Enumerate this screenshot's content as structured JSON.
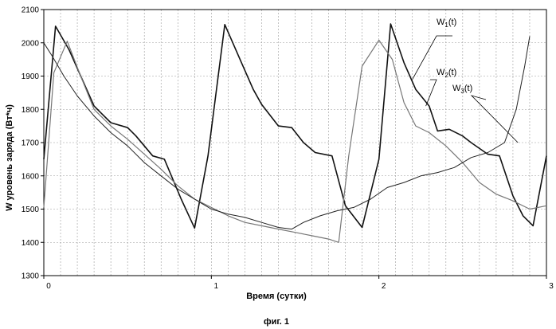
{
  "chart_data": {
    "type": "line",
    "xlabel": "Время (сутки)",
    "ylabel": "W уровень заряда (Вт*ч)",
    "caption": "фиг. 1",
    "xlim": [
      0,
      3
    ],
    "ylim": [
      1300,
      2100
    ],
    "xticks": [
      0,
      1,
      2,
      3
    ],
    "yticks": [
      1300,
      1400,
      1500,
      1600,
      1700,
      1800,
      1900,
      2000,
      2100
    ],
    "grid": true,
    "series": [
      {
        "name": "W1(t)",
        "label_main": "W",
        "label_sub": "1",
        "label_suffix": "(t)",
        "color": "#111111",
        "stroke_width": 1.6,
        "x": [
          0,
          0.07,
          0.15,
          0.3,
          0.4,
          0.5,
          0.55,
          0.65,
          0.72,
          0.82,
          0.9,
          0.98,
          1.08,
          1.18,
          1.25,
          1.3,
          1.4,
          1.48,
          1.55,
          1.62,
          1.72,
          1.8,
          1.9,
          2.0,
          2.07,
          2.15,
          2.22,
          2.3,
          2.35,
          2.42,
          2.5,
          2.55,
          2.65,
          2.72,
          2.8,
          2.86,
          2.92,
          3.0
        ],
        "y": [
          1650,
          2050,
          1980,
          1810,
          1760,
          1745,
          1720,
          1660,
          1650,
          1530,
          1443,
          1660,
          2055,
          1940,
          1860,
          1815,
          1750,
          1745,
          1700,
          1670,
          1660,
          1510,
          1445,
          1650,
          2057,
          1940,
          1860,
          1810,
          1735,
          1740,
          1720,
          1700,
          1665,
          1660,
          1540,
          1480,
          1450,
          1660
        ]
      },
      {
        "name": "W2(t)",
        "label_main": "W",
        "label_sub": "2",
        "label_suffix": "(t)",
        "color": "#777777",
        "stroke_width": 1.2,
        "x": [
          0,
          0.06,
          0.14,
          0.22,
          0.3,
          0.4,
          0.5,
          0.6,
          0.7,
          0.8,
          0.9,
          1.0,
          1.1,
          1.2,
          1.3,
          1.4,
          1.5,
          1.6,
          1.7,
          1.76,
          1.82,
          1.9,
          2.0,
          2.08,
          2.15,
          2.22,
          2.3,
          2.4,
          2.5,
          2.6,
          2.7,
          2.8,
          2.9,
          3.0
        ],
        "y": [
          1505,
          1910,
          2005,
          1900,
          1800,
          1750,
          1710,
          1665,
          1620,
          1570,
          1530,
          1505,
          1480,
          1460,
          1450,
          1440,
          1430,
          1420,
          1410,
          1400,
          1660,
          1930,
          2008,
          1950,
          1820,
          1750,
          1730,
          1690,
          1640,
          1580,
          1545,
          1525,
          1500,
          1510
        ]
      },
      {
        "name": "W3(t)",
        "label_main": "W",
        "label_sub": "3",
        "label_suffix": "(t)",
        "color": "#222222",
        "stroke_width": 1.0,
        "x": [
          0,
          0.05,
          0.12,
          0.2,
          0.3,
          0.4,
          0.5,
          0.6,
          0.7,
          0.8,
          0.9,
          1.0,
          1.1,
          1.2,
          1.3,
          1.4,
          1.48,
          1.55,
          1.65,
          1.75,
          1.85,
          1.95,
          2.05,
          2.15,
          2.25,
          2.35,
          2.45,
          2.55,
          2.65,
          2.75,
          2.82,
          2.87,
          2.9
        ],
        "y": [
          2000,
          1960,
          1900,
          1840,
          1780,
          1730,
          1690,
          1640,
          1600,
          1560,
          1530,
          1500,
          1485,
          1475,
          1460,
          1445,
          1440,
          1460,
          1480,
          1495,
          1505,
          1530,
          1565,
          1580,
          1600,
          1610,
          1625,
          1655,
          1670,
          1700,
          1800,
          1930,
          2020
        ]
      }
    ]
  }
}
